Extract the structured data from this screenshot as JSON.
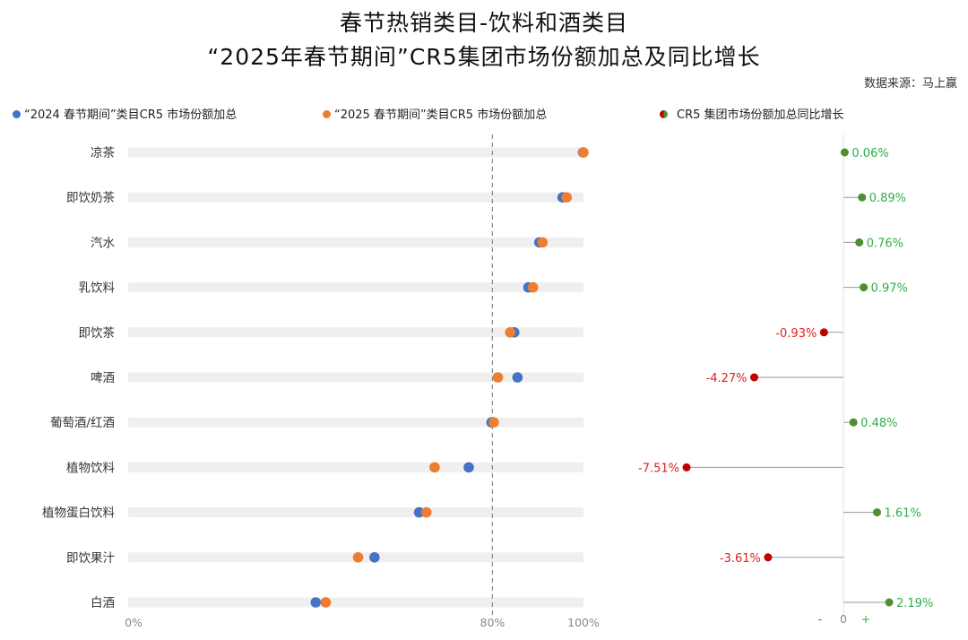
{
  "header": {
    "title_line1": "春节热销类目-饮料和酒类目",
    "title_line2": "“2025年春节期间”CR5集团市场份额加总及同比增长",
    "source": "数据来源：马上赢"
  },
  "legend": {
    "series_2024": "“2024 春节期间”类目CR5 市场份额加总",
    "series_2025": "“2025 春节期间”类目CR5 市场份额加总",
    "growth": "CR5 集团市场份额加总同比增长"
  },
  "colors": {
    "series_2024": "#4472c4",
    "series_2025": "#ed7d31",
    "positive": "#4e8f2f",
    "negative": "#c00000",
    "positive_text": "#2fae4a",
    "negative_text": "#e02020",
    "track": "#efefef",
    "ref_line": "#8a8a8a"
  },
  "chart_data": {
    "type": "dumbbell",
    "categories": [
      "凉茶",
      "即饮奶茶",
      "汽水",
      "乳饮料",
      "即饮茶",
      "啤酒",
      "葡萄酒/红酒",
      "植物饮料",
      "植物蛋白饮料",
      "即饮果汁",
      "白酒"
    ],
    "x_ticks": [
      "0%",
      "80%",
      "100%"
    ],
    "xlim": [
      0,
      100
    ],
    "reference_line": 80,
    "series": [
      {
        "name": "“2024 春节期间”类目CR5 市场份额加总",
        "values": [
          99.9,
          95.4,
          90.3,
          87.9,
          84.8,
          85.5,
          79.8,
          74.8,
          63.9,
          54.1,
          41.2
        ]
      },
      {
        "name": "“2025 春节期间”类目CR5 市场份额加总",
        "values": [
          100.0,
          96.3,
          91.0,
          88.9,
          83.9,
          81.2,
          80.3,
          67.3,
          65.5,
          50.5,
          43.4
        ]
      }
    ],
    "growth": {
      "name": "CR5 集团市场份额加总同比增长",
      "values": [
        0.06,
        0.89,
        0.76,
        0.97,
        -0.93,
        -4.27,
        0.48,
        -7.51,
        1.61,
        -3.61,
        2.19
      ],
      "labels": [
        "0.06%",
        "0.89%",
        "0.76%",
        "0.97%",
        "-0.93%",
        "-4.27%",
        "0.48%",
        "-7.51%",
        "1.61%",
        "-3.61%",
        "2.19%"
      ],
      "axis_labels": [
        "-",
        "0",
        "+"
      ]
    }
  }
}
